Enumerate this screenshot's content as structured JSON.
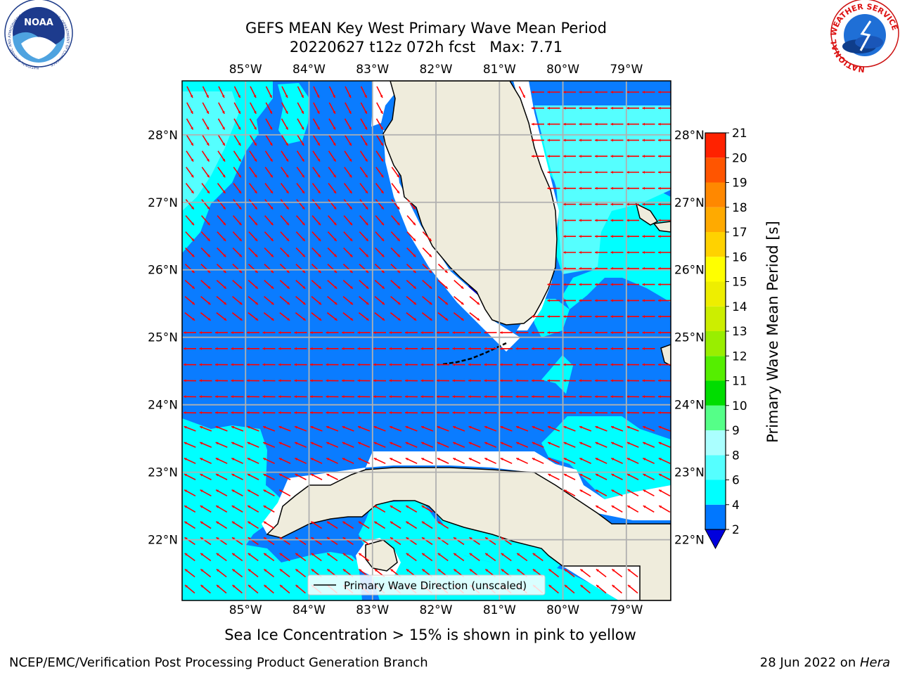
{
  "title": {
    "line1": "GEFS MEAN Key West Primary Wave Mean Period",
    "line2": "20220627 t12z 072h fcst   Max: 7.71"
  },
  "subcaption": "Sea Ice Concentration > 15% is shown in pink to yellow",
  "footer": {
    "left": "NCEP/EMC/Verification Post Processing Product Generation Branch",
    "right_prefix": "28 Jun 2022 on ",
    "right_host": "Hera"
  },
  "logos": {
    "noaa_text": "NOAA",
    "noaa_ring_text": "NATIONAL OCEANIC AND ATMOSPHERIC ADMINISTRATION · U.S. DEPARTMENT OF COMMERCE",
    "nws_ring_text": "NATIONAL WEATHER SERVICE"
  },
  "map": {
    "lon_labels": [
      "85°W",
      "84°W",
      "83°W",
      "82°W",
      "81°W",
      "80°W",
      "79°W"
    ],
    "lat_labels": [
      "28°N",
      "27°N",
      "26°N",
      "25°N",
      "24°N",
      "23°N",
      "22°N"
    ],
    "lon_range": [
      -86.0,
      -78.3
    ],
    "lat_range": [
      21.1,
      28.8
    ],
    "colors": {
      "land": "#efecdc",
      "period_2_4": "#0a7cff",
      "period_4_6": "#00ffff",
      "period_6_8": "#55ffff",
      "below_2": "#0000cc",
      "arrow": "#ff0000",
      "grid": "#b0b0b0"
    }
  },
  "legend": {
    "label": "Primary Wave Direction (unscaled)"
  },
  "colorbar": {
    "label": "Primary Wave Mean Period [s]",
    "ticks": [
      "2",
      "4",
      "6",
      "8",
      "9",
      "10",
      "11",
      "12",
      "13",
      "14",
      "15",
      "16",
      "17",
      "18",
      "19",
      "20",
      "21"
    ],
    "colors": [
      "#0077ff",
      "#00ffff",
      "#55ffff",
      "#aaffff",
      "#55ff88",
      "#00dd00",
      "#55ee00",
      "#99ee00",
      "#ccee00",
      "#eeee00",
      "#ffff00",
      "#ffd200",
      "#ffaa00",
      "#ff8800",
      "#ff5500",
      "#ff2200"
    ],
    "under_color": "#0000dd"
  }
}
